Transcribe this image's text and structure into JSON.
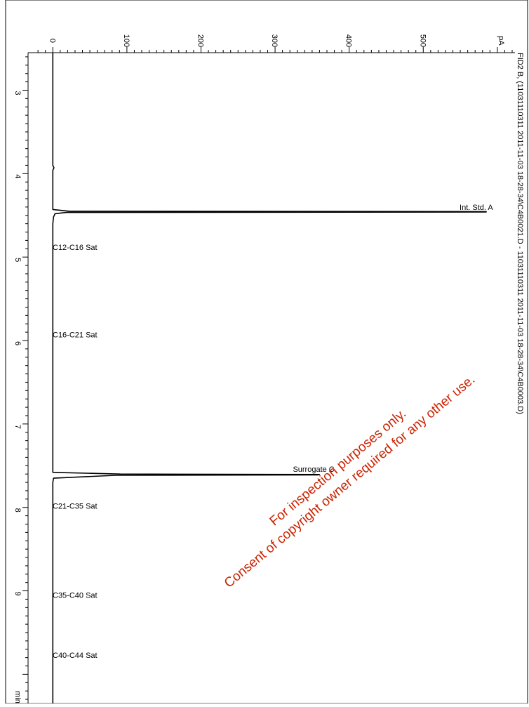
{
  "header_text": "FID2 B, (11031110311 2011-11-03 18-28-34\\C4B0021.D - 11031110311 2011-11-03 18-28-34\\C4B0003.D)",
  "watermark": {
    "line1": "For inspection purposes only.",
    "line2": "Consent of copyright owner required for any other use.",
    "color": "#cc2200"
  },
  "chart_data": {
    "type": "line",
    "title": "",
    "xlabel": "min",
    "ylabel": "pA",
    "xlim": [
      2.55,
      10.35
    ],
    "ylim": [
      -5,
      620
    ],
    "x_ticks": [
      3,
      4,
      5,
      6,
      7,
      8,
      9
    ],
    "x_tick_labels": [
      "3",
      "4",
      "5",
      "6",
      "7",
      "8",
      "9"
    ],
    "y_ticks": [
      0,
      100,
      200,
      300,
      400,
      500
    ],
    "y_tick_labels": [
      "0",
      "100",
      "200",
      "300",
      "400",
      "500"
    ],
    "grid": false,
    "orientation": "rotated-90",
    "series": [
      {
        "points": [
          [
            2.55,
            0
          ],
          [
            3.9,
            0
          ],
          [
            3.93,
            1.5
          ],
          [
            3.96,
            0
          ],
          [
            4.43,
            0
          ],
          [
            4.45,
            22
          ],
          [
            4.455,
            585
          ],
          [
            4.46,
            585
          ],
          [
            4.465,
            18
          ],
          [
            4.48,
            3
          ],
          [
            4.52,
            1
          ],
          [
            4.6,
            0
          ],
          [
            7.58,
            0
          ],
          [
            7.6,
            91
          ],
          [
            7.605,
            360
          ],
          [
            7.61,
            358
          ],
          [
            7.615,
            85
          ],
          [
            7.65,
            1
          ],
          [
            7.7,
            0
          ],
          [
            10.35,
            0
          ]
        ],
        "color": "#000000"
      }
    ],
    "annotations": [
      {
        "label": "Int. Std. A",
        "x": 4.45,
        "y": 585
      },
      {
        "label": "Surrogate C",
        "x": 7.59,
        "y": 360
      }
    ],
    "bands": [
      {
        "label": "C12-C16  Sat",
        "x": 4.88
      },
      {
        "label": "C16-C21  Sat",
        "x": 5.93
      },
      {
        "label": "C21-C35  Sat",
        "x": 7.98
      },
      {
        "label": "C35-C40 Sat",
        "x": 9.05
      },
      {
        "label": "C40-C44 Sat",
        "x": 9.77
      }
    ]
  }
}
